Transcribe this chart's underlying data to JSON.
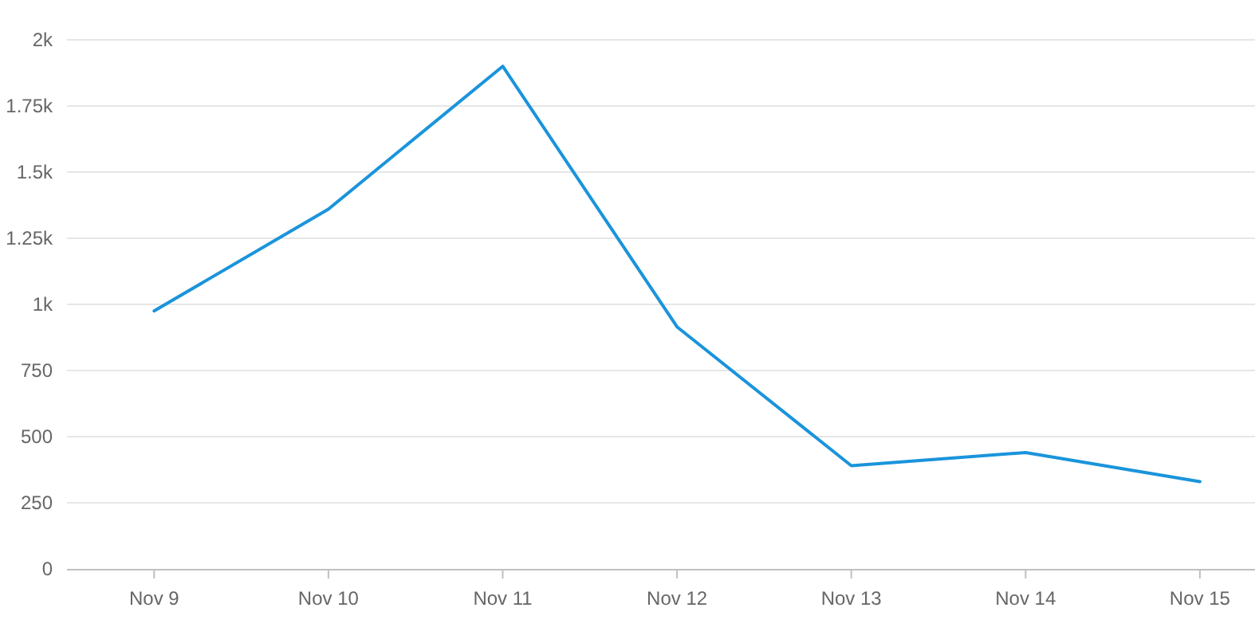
{
  "chart_data": {
    "type": "line",
    "categories": [
      "Nov 9",
      "Nov 10",
      "Nov 11",
      "Nov 12",
      "Nov 13",
      "Nov 14",
      "Nov 15"
    ],
    "series": [
      {
        "color": "#1a94db",
        "values": [
          975,
          1360,
          1900,
          915,
          390,
          440,
          330
        ]
      }
    ],
    "ylim": [
      0,
      2000
    ],
    "yticks": [
      0,
      250,
      500,
      750,
      {
        "value": 1000,
        "label": "1k"
      },
      {
        "value": 1250,
        "label": "1.25k"
      },
      {
        "value": 1500,
        "label": "1.5k"
      },
      {
        "value": 1750,
        "label": "1.75k"
      },
      {
        "value": 2000,
        "label": "2k"
      }
    ],
    "grid": "y",
    "marker": "none",
    "line_style": "solid",
    "legend": false
  }
}
